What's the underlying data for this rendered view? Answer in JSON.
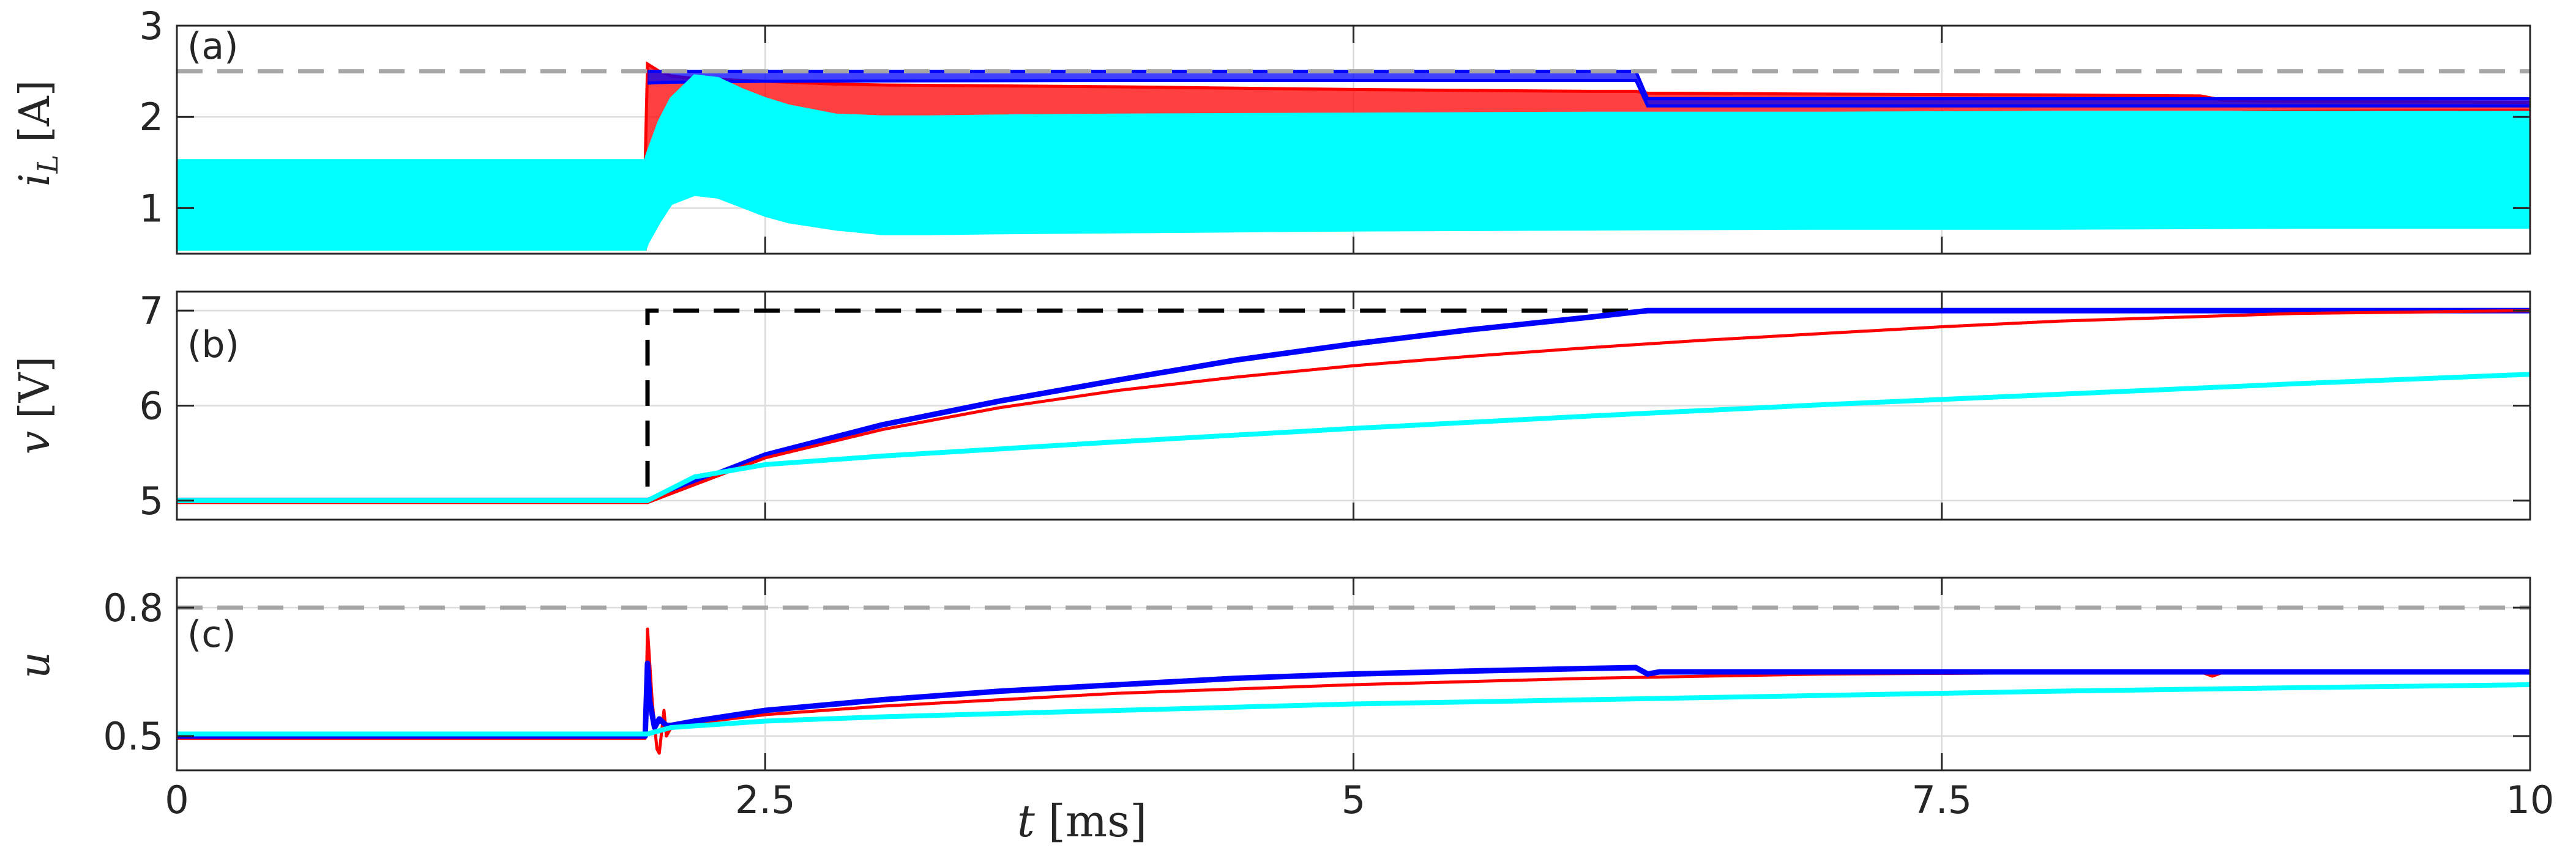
{
  "chart_data": {
    "type": "line",
    "xlabel": "t [ms]",
    "xlabel_var": "t",
    "xlabel_unit": "[ms]",
    "xlim": [
      0,
      10
    ],
    "xticks": [
      0,
      2.5,
      5,
      7.5,
      10
    ],
    "xtick_labels": [
      "0",
      "2.5",
      "5",
      "7.5",
      "10"
    ],
    "grid": true,
    "colors": {
      "blue": "#0000ff",
      "red": "#ff0000",
      "cyan": "#00ffff",
      "limit_gray": "#a6a6a6",
      "reference_black": "#000000"
    },
    "panels": [
      {
        "id": "a",
        "tag": "(a)",
        "ylabel": "i_L [A]",
        "ylabel_var": "i",
        "ylabel_sub": "L",
        "ylabel_unit": "[A]",
        "ylim": [
          0.5,
          3
        ],
        "yticks": [
          1,
          2,
          3
        ],
        "ytick_labels": [
          "1",
          "2",
          "3"
        ],
        "limit_line": 2.5,
        "envelopes": [
          {
            "color": "red",
            "x": [
              0,
              1.99,
              2.0,
              2.05,
              2.1,
              2.2,
              2.4,
              2.6,
              2.8,
              3.0,
              3.5,
              4,
              5,
              6,
              6.2,
              6.25,
              7,
              8,
              8.6,
              8.7,
              9,
              10
            ],
            "upper": [
              1.5,
              1.5,
              2.58,
              2.5,
              2.45,
              2.42,
              2.4,
              2.38,
              2.36,
              2.35,
              2.34,
              2.33,
              2.3,
              2.28,
              2.28,
              2.26,
              2.25,
              2.24,
              2.23,
              2.18,
              2.17,
              2.16
            ],
            "lower": [
              0.55,
              0.55,
              1.5,
              1.8,
              1.95,
              2.05,
              1.95,
              1.85,
              1.8,
              1.8,
              1.85,
              1.88,
              1.92,
              1.95,
              1.96,
              1.98,
              2.0,
              2.02,
              2.04,
              2.05,
              2.06,
              2.07
            ]
          },
          {
            "color": "blue",
            "x": [
              2.0,
              2.1,
              2.5,
              4,
              6.2,
              6.25,
              8,
              10
            ],
            "upper": [
              2.5,
              2.5,
              2.5,
              2.5,
              2.5,
              2.2,
              2.2,
              2.2
            ],
            "lower": [
              2.37,
              2.38,
              2.39,
              2.4,
              2.4,
              2.12,
              2.12,
              2.12
            ]
          },
          {
            "color": "cyan",
            "x": [
              0,
              1.99,
              2.0,
              2.05,
              2.1,
              2.2,
              2.3,
              2.4,
              2.5,
              2.6,
              2.8,
              3.0,
              3.2,
              3.5,
              4,
              5,
              6,
              7,
              8,
              9,
              10
            ],
            "upper": [
              1.52,
              1.52,
              1.6,
              1.95,
              2.2,
              2.45,
              2.42,
              2.3,
              2.2,
              2.12,
              2.02,
              2.0,
              2.0,
              2.01,
              2.02,
              2.03,
              2.04,
              2.04,
              2.05,
              2.05,
              2.05
            ],
            "lower": [
              0.55,
              0.55,
              0.62,
              0.85,
              1.05,
              1.15,
              1.12,
              1.02,
              0.92,
              0.85,
              0.77,
              0.72,
              0.72,
              0.73,
              0.74,
              0.76,
              0.77,
              0.78,
              0.78,
              0.79,
              0.79
            ]
          }
        ]
      },
      {
        "id": "b",
        "tag": "(b)",
        "ylabel": "v [V]",
        "ylabel_var": "v",
        "ylabel_unit": "[V]",
        "ylim": [
          4.8,
          7.2
        ],
        "yticks": [
          5,
          6,
          7
        ],
        "ytick_labels": [
          "5",
          "6",
          "7"
        ],
        "reference": {
          "x": [
            0,
            2,
            2,
            10
          ],
          "y": [
            5,
            5,
            7,
            7
          ]
        },
        "series": [
          {
            "color": "blue",
            "x": [
              0,
              2,
              2.5,
              3,
              3.5,
              4,
              4.5,
              5,
              5.5,
              6,
              6.25,
              7,
              8,
              9,
              10
            ],
            "y": [
              5.0,
              5.0,
              5.48,
              5.8,
              6.05,
              6.27,
              6.48,
              6.65,
              6.8,
              6.93,
              7.0,
              7.0,
              7.0,
              7.0,
              7.0
            ]
          },
          {
            "color": "red",
            "x": [
              0,
              2,
              2.5,
              3,
              3.5,
              4,
              4.5,
              5,
              5.5,
              6,
              6.5,
              7,
              7.5,
              8,
              8.5,
              9,
              10
            ],
            "y": [
              4.98,
              4.98,
              5.45,
              5.75,
              5.98,
              6.16,
              6.3,
              6.42,
              6.52,
              6.61,
              6.69,
              6.76,
              6.83,
              6.89,
              6.93,
              6.97,
              7.0
            ]
          },
          {
            "color": "cyan",
            "x": [
              0,
              2,
              2.2,
              2.5,
              3,
              4,
              5,
              6,
              7,
              8,
              9,
              10
            ],
            "y": [
              5.0,
              5.0,
              5.25,
              5.38,
              5.47,
              5.62,
              5.76,
              5.89,
              6.01,
              6.12,
              6.23,
              6.33
            ]
          }
        ]
      },
      {
        "id": "c",
        "tag": "(c)",
        "ylabel": "u",
        "ylabel_var": "u",
        "ylim": [
          0.42,
          0.87
        ],
        "yticks": [
          0.5,
          0.8
        ],
        "ytick_labels": [
          "0.5",
          "0.8"
        ],
        "limit_line": 0.8,
        "series": [
          {
            "color": "red",
            "x": [
              0,
              1.99,
              2.0,
              2.02,
              2.04,
              2.05,
              2.07,
              2.08,
              2.1,
              2.12,
              2.5,
              3,
              3.5,
              4,
              5,
              6,
              6.5,
              7,
              8,
              8.6,
              8.65,
              8.7,
              9,
              10
            ],
            "y": [
              0.495,
              0.495,
              0.75,
              0.58,
              0.47,
              0.46,
              0.56,
              0.5,
              0.52,
              0.525,
              0.55,
              0.57,
              0.585,
              0.6,
              0.62,
              0.635,
              0.64,
              0.645,
              0.648,
              0.65,
              0.64,
              0.65,
              0.65,
              0.65
            ]
          },
          {
            "color": "blue",
            "x": [
              0,
              1.99,
              2.0,
              2.01,
              2.03,
              2.05,
              2.08,
              2.1,
              2.2,
              2.5,
              3,
              3.5,
              4,
              4.5,
              5,
              5.5,
              6,
              6.2,
              6.25,
              6.3,
              7,
              8,
              9,
              10
            ],
            "y": [
              0.5,
              0.5,
              0.67,
              0.58,
              0.52,
              0.54,
              0.525,
              0.525,
              0.535,
              0.56,
              0.585,
              0.605,
              0.62,
              0.635,
              0.645,
              0.652,
              0.658,
              0.66,
              0.645,
              0.65,
              0.65,
              0.65,
              0.65,
              0.65
            ]
          },
          {
            "color": "cyan",
            "x": [
              0,
              2,
              2.1,
              2.5,
              3,
              4,
              5,
              6,
              7,
              8,
              9,
              10
            ],
            "y": [
              0.505,
              0.505,
              0.52,
              0.535,
              0.545,
              0.56,
              0.575,
              0.585,
              0.595,
              0.605,
              0.613,
              0.62
            ]
          }
        ]
      }
    ]
  }
}
